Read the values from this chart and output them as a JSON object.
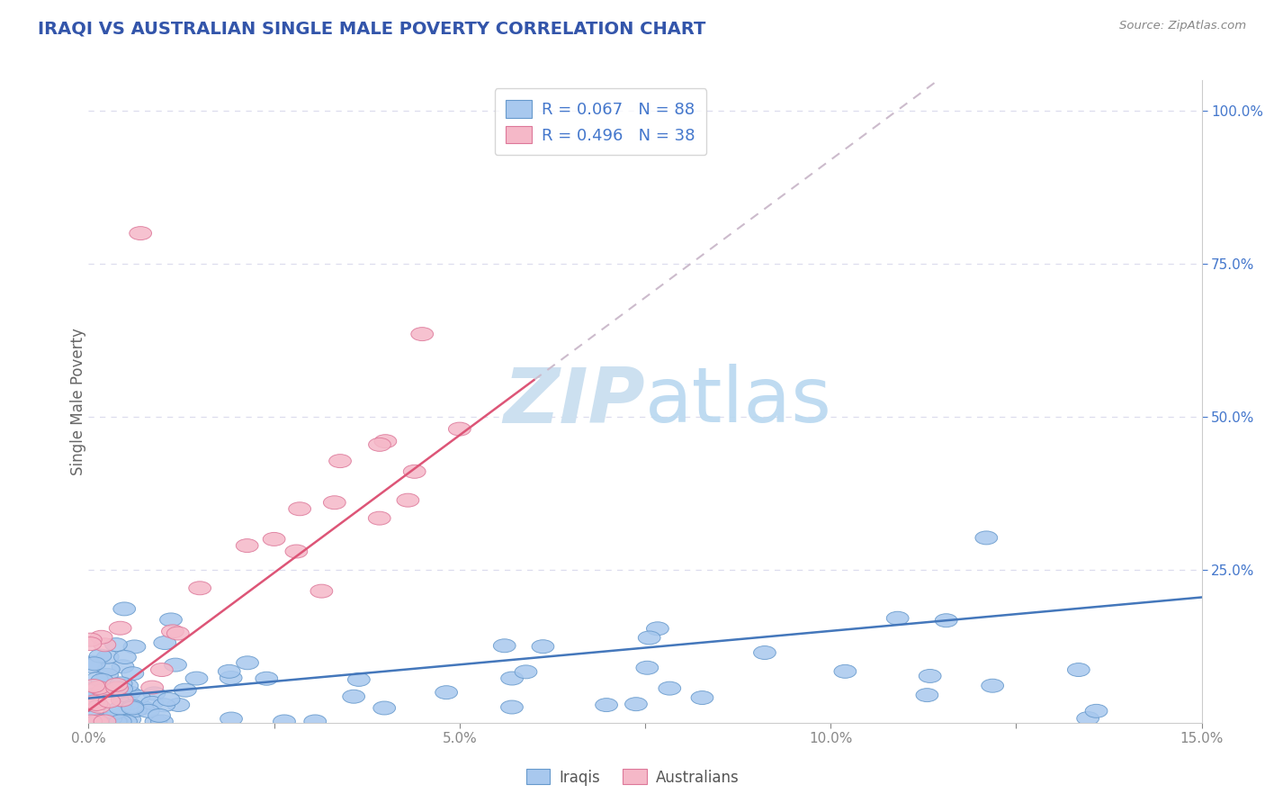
{
  "title": "IRAQI VS AUSTRALIAN SINGLE MALE POVERTY CORRELATION CHART",
  "source_text": "Source: ZipAtlas.com",
  "ylabel": "Single Male Poverty",
  "xlim": [
    0.0,
    0.15
  ],
  "ylim": [
    0.0,
    1.05
  ],
  "xticks": [
    0.0,
    0.025,
    0.05,
    0.075,
    0.1,
    0.125,
    0.15
  ],
  "xticklabels": [
    "0.0%",
    "",
    "5.0%",
    "",
    "10.0%",
    "",
    "15.0%"
  ],
  "yticks_right": [
    0.25,
    0.5,
    0.75,
    1.0
  ],
  "yticklabels_right": [
    "25.0%",
    "50.0%",
    "75.0%",
    "100.0%"
  ],
  "iraqis_color": "#a8c8ee",
  "iraqis_edge_color": "#6699cc",
  "australians_color": "#f5b8c8",
  "australians_edge_color": "#dd7799",
  "iraqis_line_color": "#4477bb",
  "australians_line_color": "#dd5577",
  "ref_line_color": "#ccbbcc",
  "grid_color": "#ddddee",
  "watermark_color": "#cce0f0",
  "legend_text_color": "#4477cc",
  "title_color": "#3355aa",
  "source_color": "#888888",
  "axis_label_color": "#666666",
  "tick_color": "#888888",
  "iraqis_slope": 1.1,
  "iraqis_intercept": 0.04,
  "australians_slope": 9.0,
  "australians_intercept": 0.02,
  "background_color": "#ffffff"
}
